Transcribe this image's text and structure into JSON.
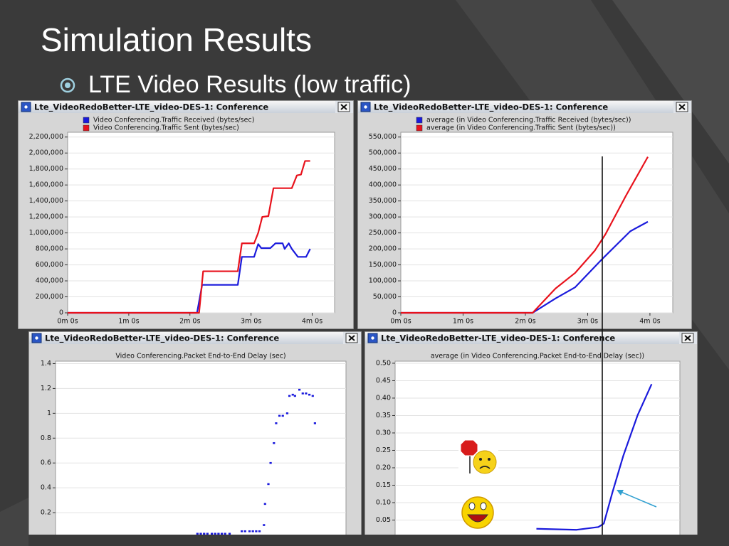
{
  "slide": {
    "title": "Simulation Results",
    "bullet": "LTE Video Results (low traffic)"
  },
  "chart_data": [
    {
      "type": "line",
      "window_title": "Lte_VideoRedoBetter-LTE_video-DES-1: Conference",
      "xlim": [
        0,
        262
      ],
      "xticks": [
        {
          "value": 0,
          "label": "0m 0s"
        },
        {
          "value": 60,
          "label": "1m 0s"
        },
        {
          "value": 120,
          "label": "2m 0s"
        },
        {
          "value": 180,
          "label": "3m 0s"
        },
        {
          "value": 240,
          "label": "4m 0s"
        }
      ],
      "ylim": [
        0,
        2260000
      ],
      "yticks": [
        0,
        {
          "value": 200000,
          "label": "200,000"
        },
        {
          "value": 400000,
          "label": "400,000"
        },
        {
          "value": 600000,
          "label": "600,000"
        },
        {
          "value": 800000,
          "label": "800,000"
        },
        {
          "value": 1000000,
          "label": "1,000,000"
        },
        {
          "value": 1200000,
          "label": "1,200,000"
        },
        {
          "value": 1400000,
          "label": "1,400,000"
        },
        {
          "value": 1600000,
          "label": "1,600,000"
        },
        {
          "value": 1800000,
          "label": "1,800,000"
        },
        {
          "value": 2000000,
          "label": "2,000,000"
        },
        {
          "value": 2200000,
          "label": "2,200,000"
        }
      ],
      "grid": true,
      "series": [
        {
          "name": "Video Conferencing.Traffic Received (bytes/sec)",
          "color": "#1a1adc",
          "x": [
            0,
            127,
            132,
            167,
            171,
            183,
            187,
            190,
            199,
            204,
            211,
            213,
            217,
            220,
            226,
            234,
            238
          ],
          "values": [
            0,
            0,
            350000,
            350000,
            700000,
            700000,
            860000,
            810000,
            810000,
            870000,
            870000,
            800000,
            870000,
            800000,
            700000,
            700000,
            800000
          ]
        },
        {
          "name": "Video Conferencing.Traffic Sent (bytes/sec)",
          "color": "#e8121c",
          "x": [
            0,
            129,
            133,
            167,
            171,
            183,
            187,
            191,
            197,
            202,
            220,
            225,
            229,
            233,
            238
          ],
          "values": [
            0,
            0,
            520000,
            520000,
            870000,
            870000,
            1000000,
            1200000,
            1210000,
            1560000,
            1560000,
            1720000,
            1730000,
            1900000,
            1900000
          ]
        }
      ]
    },
    {
      "type": "line",
      "window_title": "Lte_VideoRedoBetter-LTE_video-DES-1: Conference",
      "xlim": [
        0,
        262
      ],
      "xticks": [
        {
          "value": 0,
          "label": "0m 0s"
        },
        {
          "value": 60,
          "label": "1m 0s"
        },
        {
          "value": 120,
          "label": "2m 0s"
        },
        {
          "value": 180,
          "label": "3m 0s"
        },
        {
          "value": 240,
          "label": "4m 0s"
        }
      ],
      "ylim": [
        0,
        565000
      ],
      "yticks": [
        0,
        {
          "value": 50000,
          "label": "50,000"
        },
        {
          "value": 100000,
          "label": "100,000"
        },
        {
          "value": 150000,
          "label": "150,000"
        },
        {
          "value": 200000,
          "label": "200,000"
        },
        {
          "value": 250000,
          "label": "250,000"
        },
        {
          "value": 300000,
          "label": "300,000"
        },
        {
          "value": 350000,
          "label": "350,000"
        },
        {
          "value": 400000,
          "label": "400,000"
        },
        {
          "value": 450000,
          "label": "450,000"
        },
        {
          "value": 500000,
          "label": "500,000"
        },
        {
          "value": 550000,
          "label": "550,000"
        }
      ],
      "grid": true,
      "series": [
        {
          "name": "average (in Video Conferencing.Traffic Received (bytes/sec))",
          "color": "#1a1adc",
          "x": [
            0,
            127,
            149,
            168,
            193,
            221,
            238
          ],
          "values": [
            0,
            0,
            45000,
            80000,
            165000,
            255000,
            285000
          ]
        },
        {
          "name": "average (in Video Conferencing.Traffic Sent (bytes/sec))",
          "color": "#e8121c",
          "x": [
            0,
            127,
            149,
            168,
            187,
            197,
            217,
            238
          ],
          "values": [
            0,
            0,
            76000,
            125000,
            195000,
            245000,
            367000,
            488000
          ]
        }
      ]
    },
    {
      "type": "scatter",
      "window_title": "Lte_VideoRedoBetter-LTE_video-DES-1: Conference",
      "title": "Video Conferencing.Packet End-to-End Delay (sec)",
      "xlim": [
        0,
        262
      ],
      "ylim": [
        0,
        1.42
      ],
      "yticks": [
        0.2,
        0.4,
        0.6,
        0.8,
        1,
        1.2,
        1.4
      ],
      "grid": true,
      "color": "#1a1adc",
      "x": [
        128,
        131,
        134,
        137,
        141,
        144,
        147,
        150,
        153,
        157,
        168,
        171,
        175,
        178,
        181,
        184,
        188,
        189,
        192,
        194,
        197,
        199,
        202,
        205,
        209,
        211,
        214,
        216,
        220,
        223,
        226,
        229,
        232,
        234
      ],
      "values": [
        0.03,
        0.03,
        0.03,
        0.03,
        0.03,
        0.03,
        0.03,
        0.03,
        0.03,
        0.03,
        0.05,
        0.05,
        0.05,
        0.05,
        0.05,
        0.05,
        0.1,
        0.27,
        0.43,
        0.6,
        0.76,
        0.92,
        0.98,
        0.98,
        1,
        1.14,
        1.15,
        1.14,
        1.19,
        1.16,
        1.16,
        1.15,
        1.14,
        0.92
      ]
    },
    {
      "type": "line",
      "window_title": "Lte_VideoRedoBetter-LTE_video-DES-1: Conference",
      "title": "average (in Video Conferencing.Packet End-to-End Delay (sec))",
      "xlim": [
        0,
        262
      ],
      "ylim": [
        0,
        0.506
      ],
      "yticks": [
        0.05,
        {
          "value": 0.1,
          "label": "0.10"
        },
        0.15,
        {
          "value": 0.2,
          "label": "0.20"
        },
        0.25,
        {
          "value": 0.3,
          "label": "0.30"
        },
        0.35,
        {
          "value": 0.4,
          "label": "0.40"
        },
        0.45,
        {
          "value": 0.5,
          "label": "0.50"
        }
      ],
      "grid": true,
      "series": [
        {
          "color": "#1a1adc",
          "x": [
            130,
            167,
            187,
            192,
            200,
            210,
            223,
            236
          ],
          "values": [
            0.025,
            0.022,
            0.03,
            0.04,
            0.13,
            0.235,
            0.35,
            0.44
          ]
        }
      ]
    }
  ]
}
